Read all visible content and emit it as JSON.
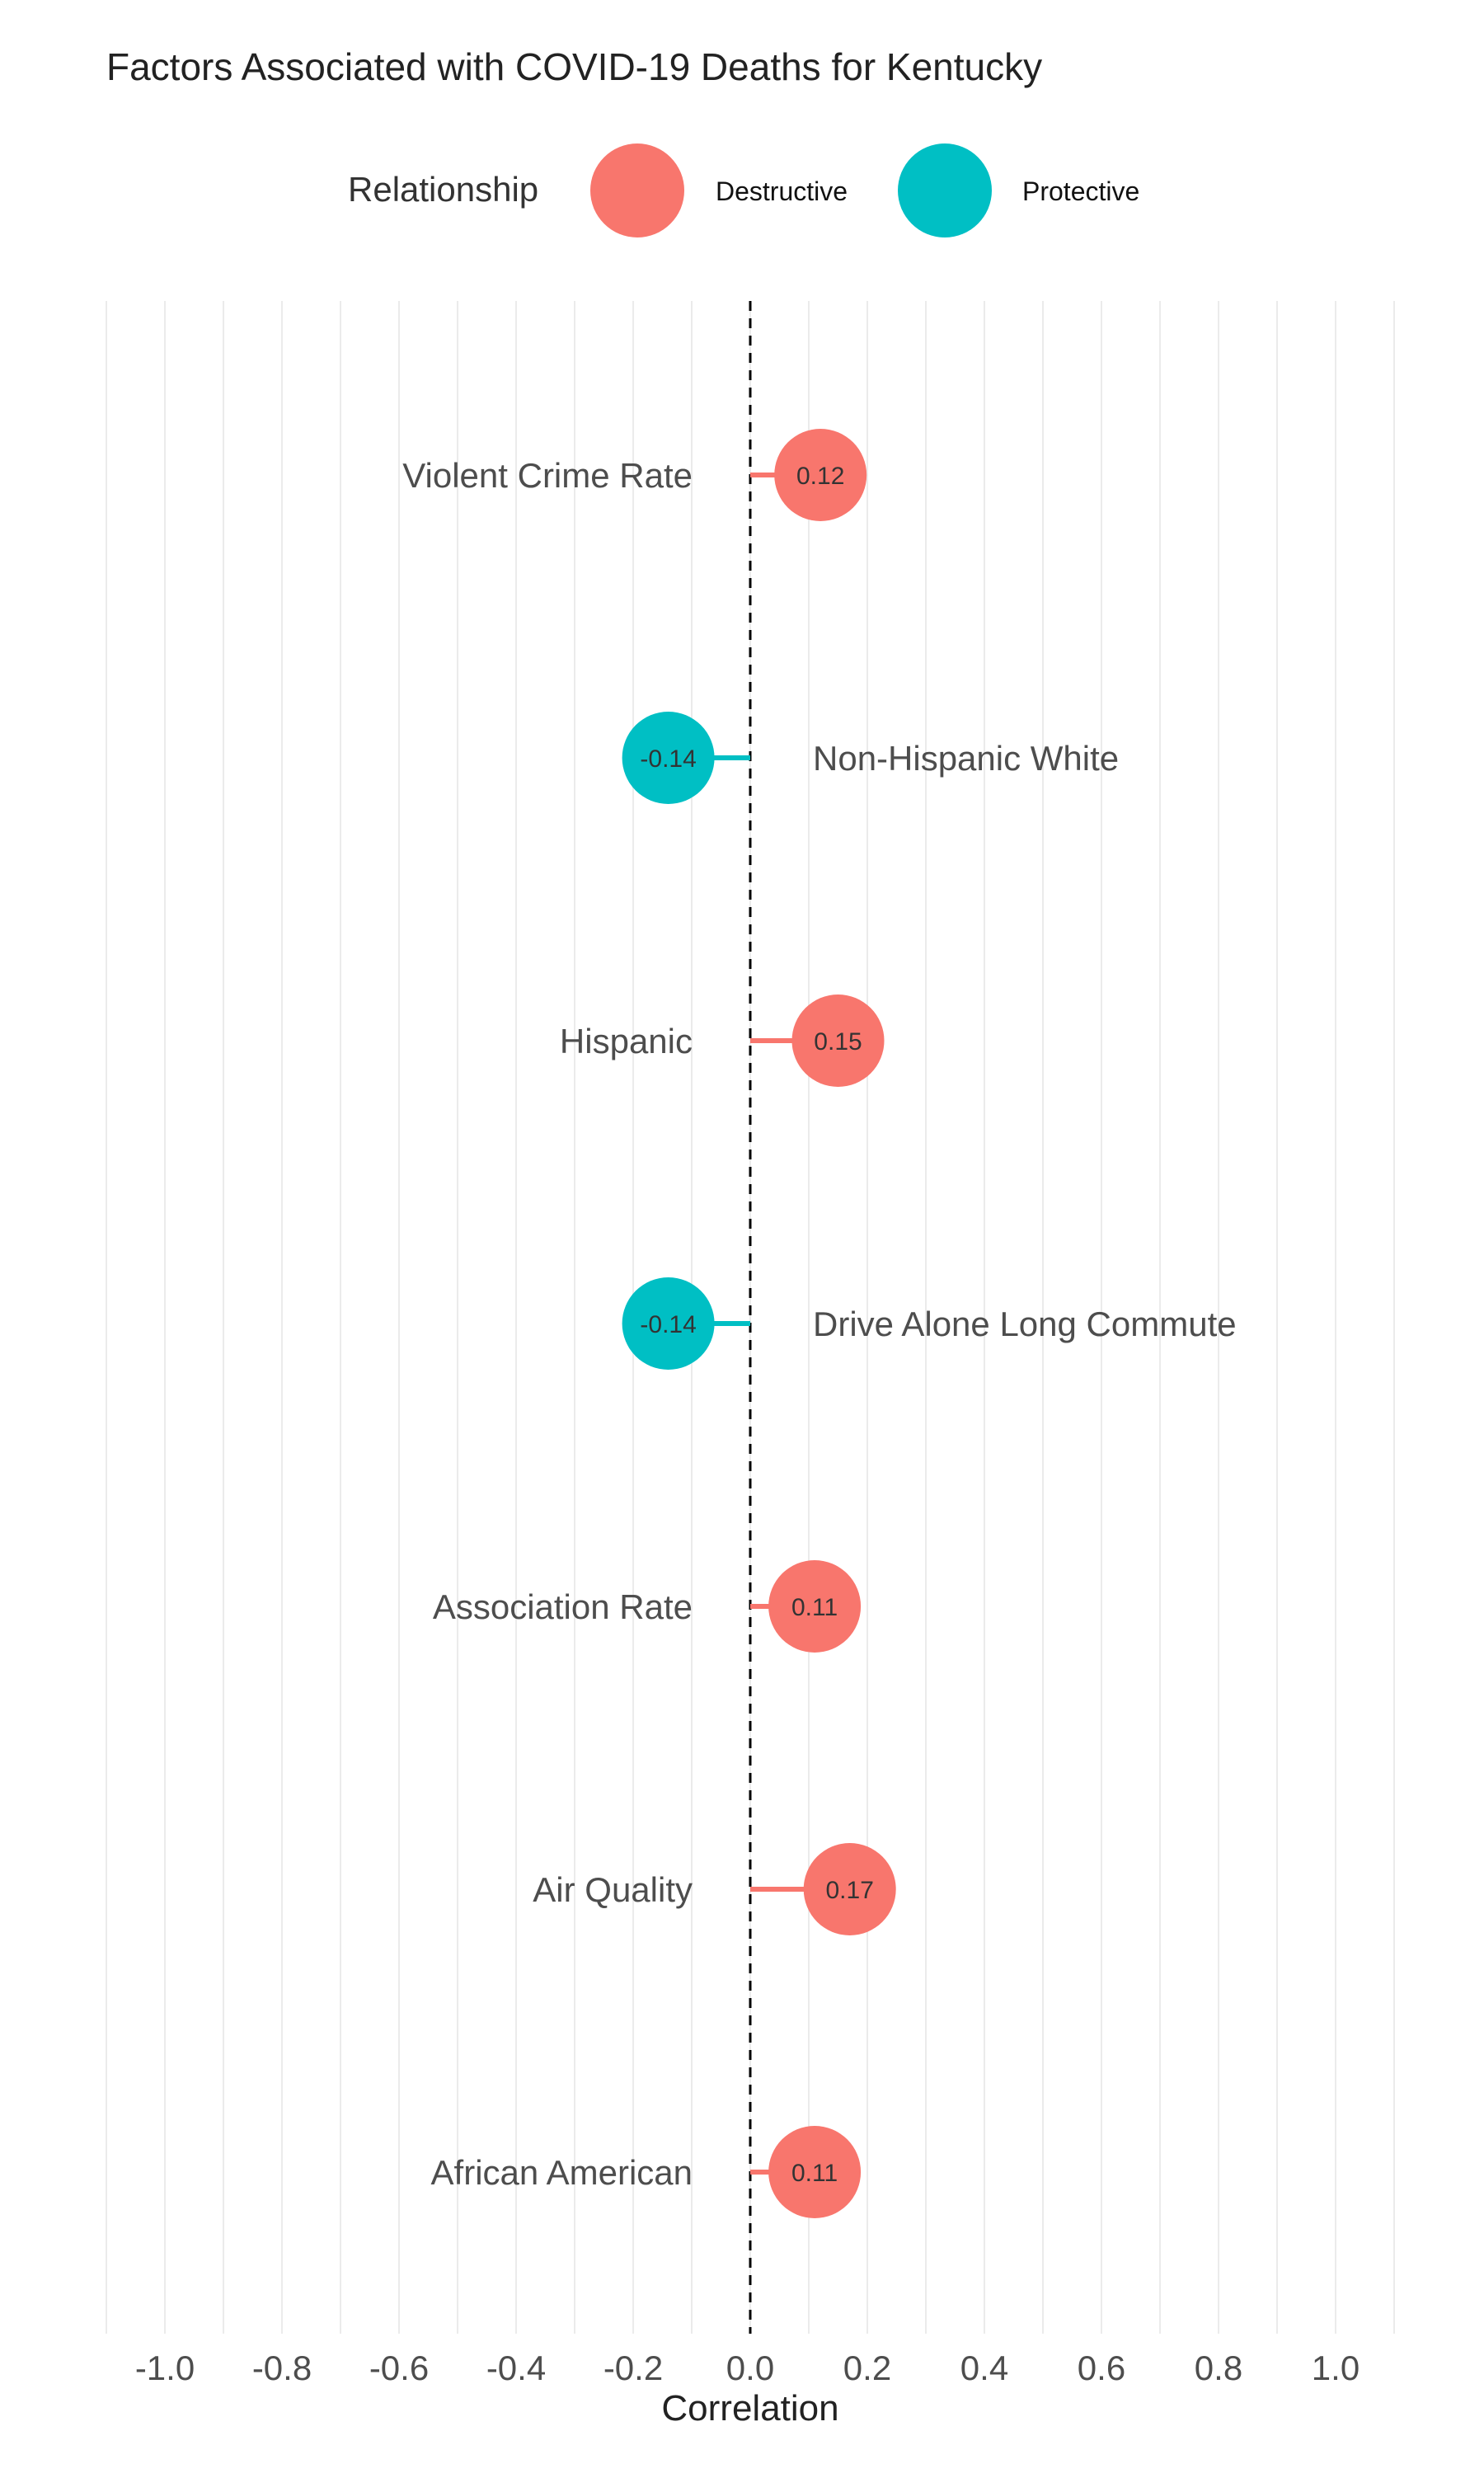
{
  "chart_data": {
    "type": "lollipop",
    "title": "Factors Associated with COVID-19 Deaths for Kentucky",
    "xlabel": "Correlation",
    "ylabel": "",
    "xlim": [
      -1.1,
      1.1
    ],
    "x_ticks": [
      -1.0,
      -0.8,
      -0.6,
      -0.4,
      -0.2,
      0.0,
      0.2,
      0.4,
      0.6,
      0.8,
      1.0
    ],
    "x_tick_labels": [
      "-1.0",
      "-0.8",
      "-0.6",
      "-0.4",
      "-0.2",
      "0.0",
      "0.2",
      "0.4",
      "0.6",
      "0.8",
      "1.0"
    ],
    "reference_line": 0,
    "grid": "vertical",
    "legend": {
      "title": "Relationship",
      "position": "top",
      "entries": [
        {
          "name": "Destructive",
          "color": "#F8766D"
        },
        {
          "name": "Protective",
          "color": "#00BFC4"
        }
      ]
    },
    "points": [
      {
        "category": "Violent Crime Rate",
        "value": 0.12,
        "label": "0.12",
        "relationship": "Destructive"
      },
      {
        "category": "Non-Hispanic White",
        "value": -0.14,
        "label": "-0.14",
        "relationship": "Protective"
      },
      {
        "category": "Hispanic",
        "value": 0.15,
        "label": "0.15",
        "relationship": "Destructive"
      },
      {
        "category": "Drive Alone Long Commute",
        "value": -0.14,
        "label": "-0.14",
        "relationship": "Protective"
      },
      {
        "category": "Association Rate",
        "value": 0.11,
        "label": "0.11",
        "relationship": "Destructive"
      },
      {
        "category": "Air Quality",
        "value": 0.17,
        "label": "0.17",
        "relationship": "Destructive"
      },
      {
        "category": "African American",
        "value": 0.11,
        "label": "0.11",
        "relationship": "Destructive"
      }
    ]
  }
}
